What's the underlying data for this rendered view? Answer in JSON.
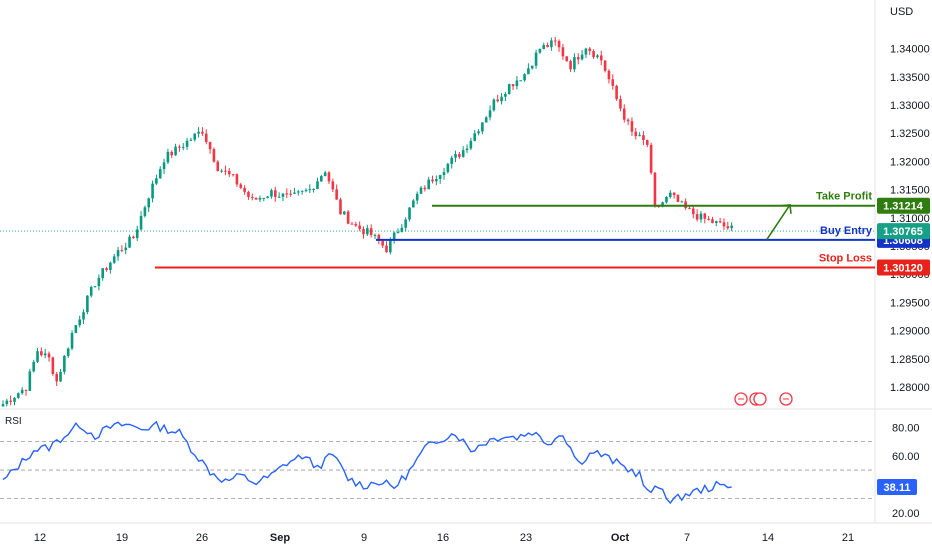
{
  "currency_label": "USD",
  "rsi_label": "RSI",
  "chart_data": {
    "type": "candlestick",
    "price_axis": {
      "ylim": [
        1.277,
        1.344
      ],
      "ticks": [
        "1.34000",
        "1.33500",
        "1.33000",
        "1.32500",
        "1.32000",
        "1.31500",
        "1.31000",
        "1.30500",
        "1.30000",
        "1.29500",
        "1.29000",
        "1.28500",
        "1.28000"
      ]
    },
    "x_ticks": [
      "12",
      "19",
      "26",
      "Sep",
      "9",
      "16",
      "23",
      "Oct",
      "7",
      "14",
      "21"
    ],
    "anchors": [
      [
        0,
        1.277
      ],
      [
        6,
        1.28
      ],
      [
        9,
        1.2865
      ],
      [
        12,
        1.285
      ],
      [
        14,
        1.281
      ],
      [
        18,
        1.2895
      ],
      [
        24,
        1.2985
      ],
      [
        30,
        1.304
      ],
      [
        34,
        1.3065
      ],
      [
        38,
        1.314
      ],
      [
        42,
        1.3205
      ],
      [
        47,
        1.323
      ],
      [
        52,
        1.3255
      ],
      [
        56,
        1.319
      ],
      [
        60,
        1.317
      ],
      [
        65,
        1.313
      ],
      [
        70,
        1.3145
      ],
      [
        75,
        1.3135
      ],
      [
        80,
        1.315
      ],
      [
        84,
        1.3185
      ],
      [
        88,
        1.311
      ],
      [
        92,
        1.3085
      ],
      [
        96,
        1.307
      ],
      [
        100,
        1.3045
      ],
      [
        104,
        1.309
      ],
      [
        108,
        1.314
      ],
      [
        112,
        1.317
      ],
      [
        116,
        1.3195
      ],
      [
        120,
        1.322
      ],
      [
        124,
        1.326
      ],
      [
        128,
        1.3305
      ],
      [
        132,
        1.3335
      ],
      [
        136,
        1.3355
      ],
      [
        140,
        1.34
      ],
      [
        144,
        1.341
      ],
      [
        148,
        1.337
      ],
      [
        152,
        1.3405
      ],
      [
        156,
        1.338
      ],
      [
        160,
        1.331
      ],
      [
        164,
        1.325
      ],
      [
        168,
        1.323
      ],
      [
        170,
        1.3115
      ],
      [
        174,
        1.314
      ],
      [
        178,
        1.3115
      ],
      [
        182,
        1.31
      ],
      [
        186,
        1.309
      ],
      [
        190,
        1.308
      ]
    ],
    "levels": [
      {
        "name": "Take Profit",
        "value": 1.31214,
        "tag": "1.31214",
        "color": "#2e7d0e"
      },
      {
        "name": "Buy Entry",
        "value": 1.30608,
        "tag": "1.30608",
        "color": "#1232c8"
      },
      {
        "name": "Stop Loss",
        "value": 1.3012,
        "tag": "1.30120",
        "color": "#e8221b"
      }
    ],
    "last_price": {
      "value": 1.30765,
      "tag": "1.30765",
      "color": "#16a085"
    },
    "rsi": {
      "ylim": [
        15,
        90
      ],
      "ticks": [
        "80.00",
        "60.00",
        "20.00"
      ],
      "bands": [
        70,
        50,
        30
      ],
      "last_value": "38.11",
      "color": "#2962ff",
      "anchors": [
        [
          0,
          42
        ],
        [
          4,
          53
        ],
        [
          8,
          64
        ],
        [
          12,
          66
        ],
        [
          16,
          74
        ],
        [
          20,
          82
        ],
        [
          24,
          74
        ],
        [
          28,
          80
        ],
        [
          32,
          82
        ],
        [
          36,
          79
        ],
        [
          40,
          81
        ],
        [
          46,
          76
        ],
        [
          50,
          62
        ],
        [
          54,
          49
        ],
        [
          58,
          42
        ],
        [
          62,
          46
        ],
        [
          66,
          41
        ],
        [
          70,
          46
        ],
        [
          74,
          55
        ],
        [
          78,
          60
        ],
        [
          82,
          52
        ],
        [
          86,
          61
        ],
        [
          90,
          44
        ],
        [
          94,
          39
        ],
        [
          98,
          42
        ],
        [
          102,
          38
        ],
        [
          106,
          49
        ],
        [
          110,
          65
        ],
        [
          114,
          72
        ],
        [
          118,
          76
        ],
        [
          122,
          64
        ],
        [
          126,
          70
        ],
        [
          130,
          74
        ],
        [
          134,
          73
        ],
        [
          138,
          77
        ],
        [
          142,
          69
        ],
        [
          146,
          76
        ],
        [
          150,
          55
        ],
        [
          154,
          63
        ],
        [
          158,
          58
        ],
        [
          162,
          52
        ],
        [
          166,
          47
        ],
        [
          168,
          34
        ],
        [
          172,
          38
        ],
        [
          174,
          27
        ],
        [
          178,
          33
        ],
        [
          182,
          36
        ],
        [
          186,
          39
        ],
        [
          190,
          38.11
        ]
      ]
    },
    "colors": {
      "up": "#089981",
      "down": "#f23645"
    }
  }
}
